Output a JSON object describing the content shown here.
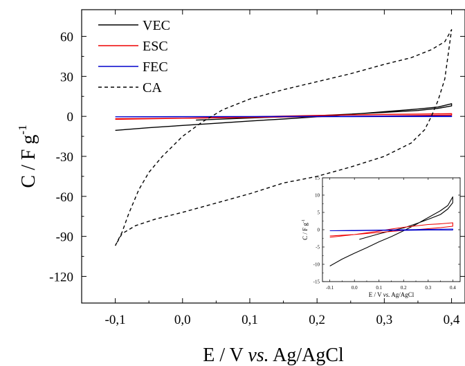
{
  "chart_data": [
    {
      "type": "line",
      "title": "",
      "xlabel": {
        "prefix": "E / V ",
        "italic": "vs.",
        "suffix": " Ag/AgCl"
      },
      "ylabel": {
        "base": "C / F g",
        "sup": "-1"
      },
      "xlim": [
        -0.15,
        0.42
      ],
      "ylim": [
        -140,
        80
      ],
      "xticks": [
        -0.1,
        0.0,
        0.1,
        0.2,
        0.3,
        0.4
      ],
      "xtick_labels": [
        "-0,1",
        "0,0",
        "0,1",
        "0,2",
        "0,3",
        "0,4"
      ],
      "yticks": [
        60,
        30,
        0,
        -30,
        -60,
        -90,
        -120
      ],
      "ytick_labels": [
        "60",
        "30",
        "0",
        "-30",
        "-60",
        "-90",
        "-120"
      ],
      "legend": {
        "position": "top-left",
        "entries": [
          "VEC",
          "ESC",
          "FEC",
          "CA"
        ]
      },
      "series": [
        {
          "name": "VEC",
          "color": "#000000",
          "dash": "solid",
          "points": [
            [
              -0.1,
              -10.5
            ],
            [
              -0.05,
              -8.5
            ],
            [
              0.0,
              -6.8
            ],
            [
              0.05,
              -5.2
            ],
            [
              0.1,
              -3.5
            ],
            [
              0.15,
              -2
            ],
            [
              0.2,
              -0.3
            ],
            [
              0.25,
              1.5
            ],
            [
              0.3,
              3.5
            ],
            [
              0.35,
              5.5
            ],
            [
              0.38,
              7
            ],
            [
              0.4,
              9.5
            ],
            [
              0.4,
              7.8
            ],
            [
              0.38,
              6
            ],
            [
              0.35,
              4.4
            ],
            [
              0.3,
              3
            ],
            [
              0.25,
              1.7
            ],
            [
              0.2,
              0.5
            ],
            [
              0.15,
              -0.3
            ],
            [
              0.1,
              -1.2
            ],
            [
              0.05,
              -2.2
            ],
            [
              0.02,
              -2.8
            ]
          ]
        },
        {
          "name": "ESC",
          "color": "#ee0000",
          "dash": "solid",
          "points": [
            [
              -0.1,
              -2.2
            ],
            [
              -0.05,
              -1.8
            ],
            [
              0.0,
              -1.4
            ],
            [
              0.05,
              -0.9
            ],
            [
              0.1,
              -0.4
            ],
            [
              0.15,
              0.2
            ],
            [
              0.2,
              0.7
            ],
            [
              0.25,
              1.1
            ],
            [
              0.3,
              1.5
            ],
            [
              0.35,
              1.7
            ],
            [
              0.4,
              2.0
            ],
            [
              0.4,
              1.0
            ],
            [
              0.35,
              0.6
            ],
            [
              0.3,
              0.3
            ],
            [
              0.25,
              0.0
            ],
            [
              0.2,
              -0.2
            ],
            [
              0.15,
              -0.5
            ],
            [
              0.1,
              -0.8
            ],
            [
              0.05,
              -1.1
            ],
            [
              0.0,
              -1.4
            ],
            [
              -0.05,
              -1.6
            ],
            [
              -0.1,
              -1.8
            ]
          ]
        },
        {
          "name": "FEC",
          "color": "#0000cc",
          "dash": "solid",
          "points": [
            [
              -0.1,
              -0.3
            ],
            [
              0.0,
              -0.2
            ],
            [
              0.1,
              -0.1
            ],
            [
              0.2,
              0.0
            ],
            [
              0.3,
              0.1
            ],
            [
              0.4,
              0.2
            ],
            [
              0.4,
              -0.1
            ],
            [
              0.3,
              -0.1
            ],
            [
              0.2,
              -0.2
            ],
            [
              0.1,
              -0.2
            ],
            [
              0.0,
              -0.3
            ],
            [
              -0.1,
              -0.3
            ]
          ]
        },
        {
          "name": "CA",
          "color": "#000000",
          "dash": "dashed",
          "points": [
            [
              -0.1,
              -97
            ],
            [
              -0.09,
              -87
            ],
            [
              -0.08,
              -73
            ],
            [
              -0.065,
              -55
            ],
            [
              -0.05,
              -42
            ],
            [
              -0.03,
              -30
            ],
            [
              0.0,
              -15
            ],
            [
              0.03,
              -4
            ],
            [
              0.06,
              5
            ],
            [
              0.1,
              13
            ],
            [
              0.15,
              20
            ],
            [
              0.2,
              26
            ],
            [
              0.25,
              32
            ],
            [
              0.3,
              39
            ],
            [
              0.34,
              44
            ],
            [
              0.37,
              50
            ],
            [
              0.39,
              56
            ],
            [
              0.4,
              65
            ],
            [
              0.39,
              28
            ],
            [
              0.38,
              12
            ],
            [
              0.37,
              0
            ],
            [
              0.36,
              -10
            ],
            [
              0.34,
              -20
            ],
            [
              0.3,
              -30
            ],
            [
              0.25,
              -38
            ],
            [
              0.2,
              -45
            ],
            [
              0.15,
              -50
            ],
            [
              0.1,
              -58
            ],
            [
              0.05,
              -65
            ],
            [
              0.0,
              -72
            ],
            [
              -0.04,
              -77
            ],
            [
              -0.07,
              -82
            ],
            [
              -0.09,
              -88
            ],
            [
              -0.1,
              -97
            ]
          ]
        }
      ]
    },
    {
      "type": "line",
      "title": "",
      "xlabel": {
        "prefix": "E / V ",
        "italic": "vs.",
        "suffix": " Ag/AgCl"
      },
      "ylabel": {
        "base": "C / F g",
        "sup": "-1"
      },
      "xlim": [
        -0.13,
        0.43
      ],
      "ylim": [
        -15,
        15
      ],
      "xticks": [
        -0.1,
        0.0,
        0.1,
        0.2,
        0.3,
        0.4
      ],
      "xtick_labels": [
        "-0.1",
        "0.0",
        "0.1",
        "0.2",
        "0.3",
        "0.4"
      ],
      "yticks": [
        15,
        10,
        5,
        0,
        -5,
        -10,
        -15
      ],
      "ytick_labels": [
        "15",
        "10",
        "5",
        "0",
        "-5",
        "-10",
        "-15"
      ],
      "series": [
        {
          "name": "VEC",
          "color": "#000000",
          "dash": "solid",
          "points": [
            [
              -0.1,
              -10.5
            ],
            [
              -0.05,
              -8.5
            ],
            [
              0.0,
              -6.8
            ],
            [
              0.05,
              -5.2
            ],
            [
              0.1,
              -3.5
            ],
            [
              0.15,
              -2
            ],
            [
              0.2,
              -0.3
            ],
            [
              0.25,
              1.5
            ],
            [
              0.3,
              3.5
            ],
            [
              0.35,
              5.5
            ],
            [
              0.38,
              7
            ],
            [
              0.4,
              9.5
            ],
            [
              0.4,
              7.8
            ],
            [
              0.38,
              6
            ],
            [
              0.35,
              4.4
            ],
            [
              0.3,
              3
            ],
            [
              0.25,
              1.7
            ],
            [
              0.2,
              0.5
            ],
            [
              0.15,
              -0.3
            ],
            [
              0.1,
              -1.2
            ],
            [
              0.05,
              -2.2
            ],
            [
              0.02,
              -2.8
            ]
          ]
        },
        {
          "name": "ESC",
          "color": "#ee0000",
          "dash": "solid",
          "points": [
            [
              -0.1,
              -2.2
            ],
            [
              -0.05,
              -1.8
            ],
            [
              0.0,
              -1.4
            ],
            [
              0.05,
              -0.9
            ],
            [
              0.1,
              -0.4
            ],
            [
              0.15,
              0.2
            ],
            [
              0.2,
              0.7
            ],
            [
              0.25,
              1.1
            ],
            [
              0.3,
              1.5
            ],
            [
              0.35,
              1.7
            ],
            [
              0.4,
              2.0
            ],
            [
              0.4,
              1.0
            ],
            [
              0.35,
              0.6
            ],
            [
              0.3,
              0.3
            ],
            [
              0.25,
              0.0
            ],
            [
              0.2,
              -0.2
            ],
            [
              0.15,
              -0.5
            ],
            [
              0.1,
              -0.8
            ],
            [
              0.05,
              -1.1
            ],
            [
              0.0,
              -1.4
            ],
            [
              -0.05,
              -1.6
            ],
            [
              -0.1,
              -1.8
            ]
          ]
        },
        {
          "name": "FEC",
          "color": "#0000cc",
          "dash": "solid",
          "points": [
            [
              -0.1,
              -0.3
            ],
            [
              0.0,
              -0.2
            ],
            [
              0.1,
              -0.1
            ],
            [
              0.2,
              0.0
            ],
            [
              0.3,
              0.1
            ],
            [
              0.4,
              0.2
            ],
            [
              0.4,
              -0.1
            ],
            [
              0.3,
              -0.1
            ],
            [
              0.2,
              -0.2
            ],
            [
              0.1,
              -0.2
            ],
            [
              0.0,
              -0.3
            ],
            [
              -0.1,
              -0.3
            ]
          ]
        }
      ]
    }
  ]
}
